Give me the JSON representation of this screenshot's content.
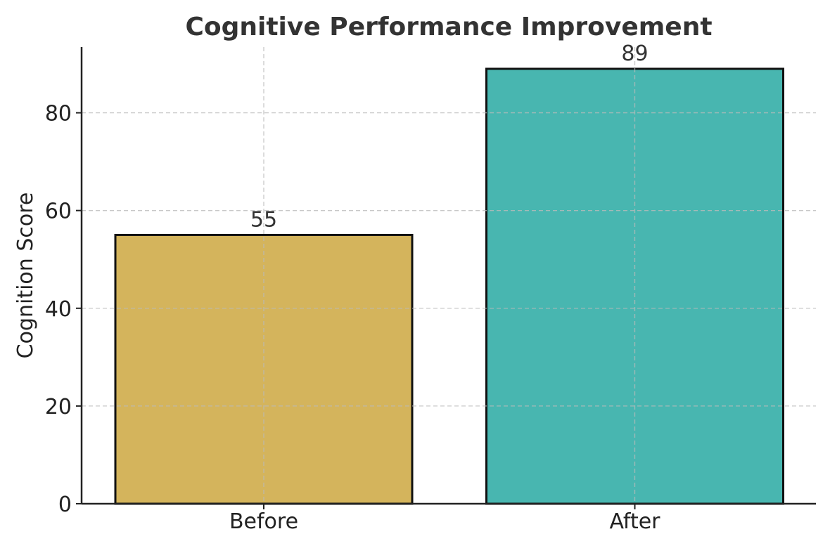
{
  "chart_data": {
    "type": "bar",
    "title": "Cognitive Performance Improvement",
    "xlabel": "",
    "ylabel": "Cognition Score",
    "categories": [
      "Before",
      "After"
    ],
    "values": [
      55,
      89
    ],
    "data_labels": [
      "55",
      "89"
    ],
    "colors": [
      "#D4B45C",
      "#48B6B0"
    ],
    "edge_color": "#111111",
    "ylim": [
      0,
      93.45
    ],
    "yticks": [
      0,
      20,
      40,
      60,
      80
    ],
    "grid": true,
    "grid_style": "dashed",
    "legend": "none"
  }
}
